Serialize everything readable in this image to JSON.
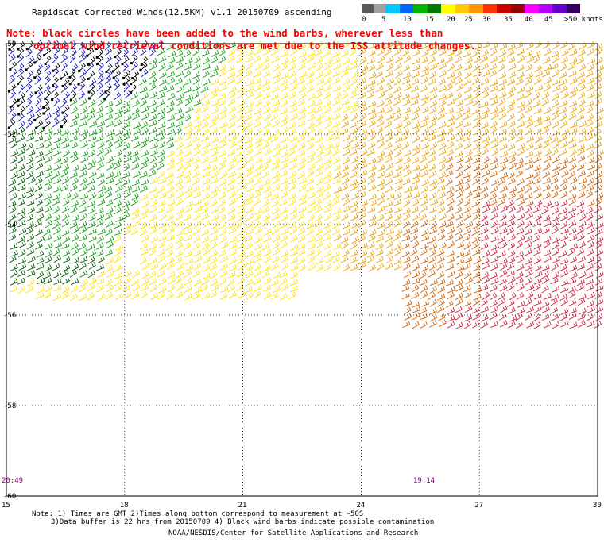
{
  "title": "Rapidscat Corrected Winds(12.5KM) v1.1 20150709 ascending",
  "note_line1": "Note: black circles have been added to the wind barbs, wherever less than",
  "note_line2": "optimal wind retrieval conditions are met due to the ISS attitude changes.",
  "speed_scale": {
    "labels": [
      "0",
      "5",
      "10",
      "15",
      "20",
      "25",
      "30",
      "35",
      "40",
      "45",
      ">50 knots"
    ],
    "colors": [
      "#5a5a5a",
      "#a0a0a0",
      "#00c8ff",
      "#0064ff",
      "#00b400",
      "#007800",
      "#ffff00",
      "#ffc800",
      "#ff9600",
      "#ff3200",
      "#c80000",
      "#960000",
      "#ff00ff",
      "#b400ff",
      "#6400c8",
      "#32005a"
    ]
  },
  "lat_labels": [
    "-50",
    "-52",
    "-54",
    "-56",
    "-58",
    "-60"
  ],
  "lon_labels": [
    "15",
    "18",
    "21",
    "24",
    "27",
    "30"
  ],
  "time_labels": {
    "left": "20:49",
    "right": "19:14"
  },
  "footer": {
    "line1": "Note: 1) Times are GMT 2)Times along bottom correspond to measurement at ~50S",
    "line2": "3)Data buffer is 22 hrs from 20150709 4) Black wind barbs indicate possible contamination",
    "line3": "NOAA/NESDIS/Center for Satellite Applications and Research"
  },
  "map": {
    "lon_range": [
      15,
      30
    ],
    "lat_range": [
      -60,
      -50
    ],
    "gridlines": "dotted",
    "wind_regions": [
      {
        "name": "blue-contaminated",
        "color": "#1010c0"
      },
      {
        "name": "green",
        "color": "#10a010"
      },
      {
        "name": "dark-green",
        "color": "#006000"
      },
      {
        "name": "yellow",
        "color": "#ffe000"
      },
      {
        "name": "orange",
        "color": "#e8a000"
      },
      {
        "name": "dark-orange",
        "color": "#d06000"
      },
      {
        "name": "red",
        "color": "#d02040"
      }
    ]
  }
}
